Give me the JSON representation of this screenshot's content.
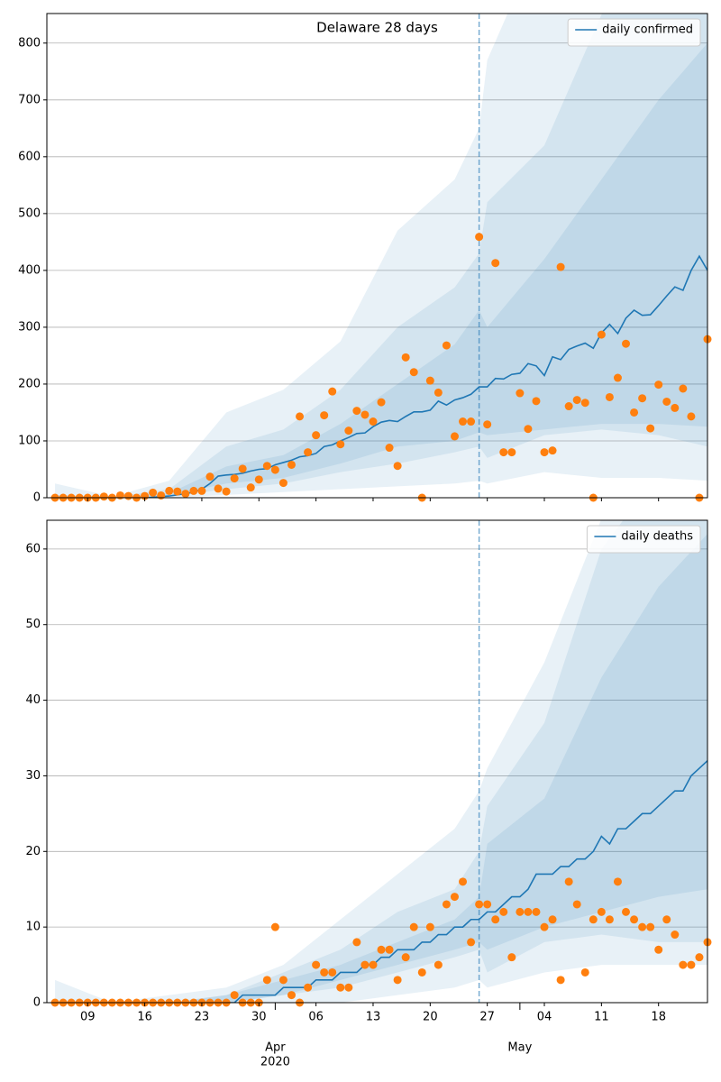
{
  "chart_data": [
    {
      "type": "line",
      "title": "Delaware 28 days",
      "legend": "upper right",
      "grid": true,
      "x": [
        "2020-03-05",
        "2020-03-06",
        "2020-03-07",
        "2020-03-08",
        "2020-03-09",
        "2020-03-10",
        "2020-03-11",
        "2020-03-12",
        "2020-03-13",
        "2020-03-14",
        "2020-03-15",
        "2020-03-16",
        "2020-03-17",
        "2020-03-18",
        "2020-03-19",
        "2020-03-20",
        "2020-03-21",
        "2020-03-22",
        "2020-03-23",
        "2020-03-24",
        "2020-03-25",
        "2020-03-26",
        "2020-03-27",
        "2020-03-28",
        "2020-03-29",
        "2020-03-30",
        "2020-03-31",
        "2020-04-01",
        "2020-04-02",
        "2020-04-03",
        "2020-04-04",
        "2020-04-05",
        "2020-04-06",
        "2020-04-07",
        "2020-04-08",
        "2020-04-09",
        "2020-04-10",
        "2020-04-11",
        "2020-04-12",
        "2020-04-13",
        "2020-04-14",
        "2020-04-15",
        "2020-04-16",
        "2020-04-17",
        "2020-04-18",
        "2020-04-19",
        "2020-04-20",
        "2020-04-21",
        "2020-04-22",
        "2020-04-23",
        "2020-04-24",
        "2020-04-25",
        "2020-04-26",
        "2020-04-27",
        "2020-04-28",
        "2020-04-29",
        "2020-04-30",
        "2020-05-01",
        "2020-05-02",
        "2020-05-03",
        "2020-05-04",
        "2020-05-05",
        "2020-05-06",
        "2020-05-07",
        "2020-05-08",
        "2020-05-09",
        "2020-05-10",
        "2020-05-11",
        "2020-05-12",
        "2020-05-13",
        "2020-05-14",
        "2020-05-15",
        "2020-05-16",
        "2020-05-17",
        "2020-05-18",
        "2020-05-19",
        "2020-05-20",
        "2020-05-21",
        "2020-05-22",
        "2020-05-23",
        "2020-05-24"
      ],
      "series": [
        {
          "name": "daily confirmed",
          "color": "#1f77b4",
          "values": [
            0,
            0,
            0,
            0,
            0,
            0,
            0,
            0,
            0,
            0,
            0,
            0,
            1,
            2,
            3,
            5,
            7,
            10,
            15,
            25,
            38,
            40,
            41,
            43,
            47,
            50,
            51,
            58,
            62,
            66,
            72,
            74,
            78,
            90,
            93,
            100,
            106,
            113,
            114,
            125,
            133,
            136,
            134,
            143,
            151,
            151,
            154,
            170,
            163,
            172,
            176,
            182,
            195,
            195,
            210,
            209,
            217,
            219,
            236,
            232,
            215,
            248,
            243,
            261,
            267,
            272,
            263,
            290,
            305,
            289,
            316,
            330,
            321,
            322,
            338,
            355,
            371,
            365,
            400,
            425,
            400
          ]
        }
      ],
      "points": {
        "color": "#ff7f0e",
        "values": [
          0,
          0,
          0,
          0,
          0,
          0,
          2,
          0,
          4,
          3,
          0,
          3,
          9,
          4,
          12,
          11,
          7,
          12,
          12,
          37,
          16,
          11,
          34,
          51,
          18,
          32,
          56,
          49,
          26,
          58,
          143,
          80,
          110,
          145,
          187,
          94,
          118,
          153,
          146,
          134,
          168,
          88,
          56,
          247,
          221,
          0,
          206,
          185,
          268,
          108,
          134,
          134,
          459,
          129,
          413,
          80,
          80,
          184,
          121,
          170,
          80,
          83,
          406,
          161,
          172,
          167,
          0,
          287,
          177,
          211,
          271,
          150,
          175,
          122,
          199,
          169,
          158,
          192,
          143,
          0,
          279
        ]
      },
      "bands": [
        {
          "color": "#1f77b4",
          "x": [
            "2020-03-05",
            "2020-03-12",
            "2020-03-19",
            "2020-03-26",
            "2020-04-02",
            "2020-04-09",
            "2020-04-16",
            "2020-04-23",
            "2020-04-26",
            "2020-04-27",
            "2020-05-04",
            "2020-05-11",
            "2020-05-18",
            "2020-05-24"
          ],
          "lower": [
            0,
            0,
            0,
            5,
            10,
            15,
            20,
            25,
            30,
            25,
            45,
            35,
            35,
            30
          ],
          "upper": [
            25,
            2,
            30,
            150,
            190,
            275,
            470,
            560,
            650,
            770,
            1000,
            1200,
            1400,
            1600
          ]
        },
        {
          "color": "#1f77b4",
          "x": [
            "2020-03-05",
            "2020-03-12",
            "2020-03-19",
            "2020-03-26",
            "2020-04-02",
            "2020-04-09",
            "2020-04-16",
            "2020-04-23",
            "2020-04-26",
            "2020-04-27",
            "2020-05-04",
            "2020-05-11",
            "2020-05-18",
            "2020-05-24"
          ],
          "lower": [
            0,
            0,
            2,
            15,
            25,
            45,
            60,
            80,
            90,
            70,
            110,
            120,
            110,
            90
          ],
          "upper": [
            5,
            1,
            15,
            90,
            120,
            190,
            300,
            370,
            430,
            520,
            620,
            850,
            1000,
            1100
          ]
        },
        {
          "color": "#1f77b4",
          "x": [
            "2020-03-05",
            "2020-03-12",
            "2020-03-19",
            "2020-03-26",
            "2020-04-02",
            "2020-04-09",
            "2020-04-16",
            "2020-04-23",
            "2020-04-26",
            "2020-04-27",
            "2020-05-04",
            "2020-05-11",
            "2020-05-18",
            "2020-05-24"
          ],
          "lower": [
            0,
            0,
            4,
            25,
            35,
            60,
            90,
            100,
            115,
            110,
            120,
            130,
            130,
            125
          ],
          "upper": [
            2,
            0,
            8,
            55,
            75,
            130,
            200,
            270,
            330,
            300,
            420,
            560,
            700,
            800
          ]
        }
      ],
      "vline": "2020-04-26",
      "xlim": [
        "2020-03-04",
        "2020-05-24"
      ],
      "ylim": [
        0,
        852
      ],
      "yticks": [
        0,
        100,
        200,
        300,
        400,
        500,
        600,
        700,
        800
      ]
    },
    {
      "type": "line",
      "legend": "upper right",
      "grid": true,
      "x": [
        "2020-03-05",
        "2020-03-06",
        "2020-03-07",
        "2020-03-08",
        "2020-03-09",
        "2020-03-10",
        "2020-03-11",
        "2020-03-12",
        "2020-03-13",
        "2020-03-14",
        "2020-03-15",
        "2020-03-16",
        "2020-03-17",
        "2020-03-18",
        "2020-03-19",
        "2020-03-20",
        "2020-03-21",
        "2020-03-22",
        "2020-03-23",
        "2020-03-24",
        "2020-03-25",
        "2020-03-26",
        "2020-03-27",
        "2020-03-28",
        "2020-03-29",
        "2020-03-30",
        "2020-03-31",
        "2020-04-01",
        "2020-04-02",
        "2020-04-03",
        "2020-04-04",
        "2020-04-05",
        "2020-04-06",
        "2020-04-07",
        "2020-04-08",
        "2020-04-09",
        "2020-04-10",
        "2020-04-11",
        "2020-04-12",
        "2020-04-13",
        "2020-04-14",
        "2020-04-15",
        "2020-04-16",
        "2020-04-17",
        "2020-04-18",
        "2020-04-19",
        "2020-04-20",
        "2020-04-21",
        "2020-04-22",
        "2020-04-23",
        "2020-04-24",
        "2020-04-25",
        "2020-04-26",
        "2020-04-27",
        "2020-04-28",
        "2020-04-29",
        "2020-04-30",
        "2020-05-01",
        "2020-05-02",
        "2020-05-03",
        "2020-05-04",
        "2020-05-05",
        "2020-05-06",
        "2020-05-07",
        "2020-05-08",
        "2020-05-09",
        "2020-05-10",
        "2020-05-11",
        "2020-05-12",
        "2020-05-13",
        "2020-05-14",
        "2020-05-15",
        "2020-05-16",
        "2020-05-17",
        "2020-05-18",
        "2020-05-19",
        "2020-05-20",
        "2020-05-21",
        "2020-05-22",
        "2020-05-23",
        "2020-05-24"
      ],
      "series": [
        {
          "name": "daily deaths",
          "color": "#1f77b4",
          "values": [
            0,
            0,
            0,
            0,
            0,
            0,
            0,
            0,
            0,
            0,
            0,
            0,
            0,
            0,
            0,
            0,
            0,
            0,
            0,
            0,
            0,
            0,
            0,
            1,
            1,
            1,
            1,
            1,
            2,
            2,
            2,
            2,
            3,
            3,
            3,
            4,
            4,
            4,
            5,
            5,
            6,
            6,
            7,
            7,
            7,
            8,
            8,
            9,
            9,
            10,
            10,
            11,
            11,
            12,
            12,
            13,
            14,
            14,
            15,
            17,
            17,
            17,
            18,
            18,
            19,
            19,
            20,
            22,
            21,
            23,
            23,
            24,
            25,
            25,
            26,
            27,
            28,
            28,
            30,
            31,
            32
          ]
        }
      ],
      "points": {
        "color": "#ff7f0e",
        "values": [
          0,
          0,
          0,
          0,
          0,
          0,
          0,
          0,
          0,
          0,
          0,
          0,
          0,
          0,
          0,
          0,
          0,
          0,
          0,
          0,
          0,
          0,
          1,
          0,
          0,
          0,
          3,
          10,
          3,
          1,
          0,
          2,
          5,
          4,
          4,
          2,
          2,
          8,
          5,
          5,
          7,
          7,
          3,
          6,
          10,
          4,
          10,
          5,
          13,
          14,
          16,
          8,
          13,
          13,
          11,
          12,
          6,
          12,
          12,
          12,
          10,
          11,
          3,
          16,
          13,
          4,
          11,
          12,
          11,
          16,
          12,
          11,
          10,
          10,
          7,
          11,
          9,
          5,
          5,
          6,
          8
        ]
      },
      "bands": [
        {
          "color": "#1f77b4",
          "x": [
            "2020-03-05",
            "2020-03-12",
            "2020-03-19",
            "2020-03-26",
            "2020-04-02",
            "2020-04-09",
            "2020-04-16",
            "2020-04-23",
            "2020-04-26",
            "2020-04-27",
            "2020-05-04",
            "2020-05-11",
            "2020-05-18",
            "2020-05-24"
          ],
          "lower": [
            0,
            0,
            0,
            0,
            0,
            0,
            1,
            2,
            3,
            2,
            4,
            5,
            5,
            5
          ],
          "upper": [
            3,
            0,
            1,
            2,
            5,
            11,
            17,
            23,
            28,
            31,
            45,
            64,
            70,
            75
          ]
        },
        {
          "color": "#1f77b4",
          "x": [
            "2020-03-05",
            "2020-03-12",
            "2020-03-19",
            "2020-03-26",
            "2020-04-02",
            "2020-04-09",
            "2020-04-16",
            "2020-04-23",
            "2020-04-26",
            "2020-04-27",
            "2020-05-04",
            "2020-05-11",
            "2020-05-18",
            "2020-05-24"
          ],
          "lower": [
            0,
            0,
            0,
            0,
            1,
            2,
            4,
            6,
            7,
            4,
            8,
            9,
            8,
            8
          ],
          "upper": [
            0,
            0,
            0,
            1,
            4,
            7,
            12,
            15,
            20,
            26,
            37,
            60,
            70,
            75
          ]
        },
        {
          "color": "#1f77b4",
          "x": [
            "2020-03-05",
            "2020-03-12",
            "2020-03-19",
            "2020-03-26",
            "2020-04-02",
            "2020-04-09",
            "2020-04-16",
            "2020-04-23",
            "2020-04-26",
            "2020-04-27",
            "2020-05-04",
            "2020-05-11",
            "2020-05-18",
            "2020-05-24"
          ],
          "lower": [
            0,
            0,
            0,
            0,
            1,
            3,
            5,
            7,
            8,
            7,
            10,
            12,
            14,
            15
          ],
          "upper": [
            0,
            0,
            0,
            1,
            3,
            5,
            8,
            11,
            14,
            21,
            27,
            43,
            55,
            62
          ]
        }
      ],
      "vline": "2020-04-26",
      "xlim": [
        "2020-03-04",
        "2020-05-24"
      ],
      "ylim": [
        0,
        63.8
      ],
      "yticks": [
        0,
        10,
        20,
        30,
        40,
        50,
        60
      ],
      "xticks": [
        {
          "value": "2020-03-09",
          "label": "09"
        },
        {
          "value": "2020-03-16",
          "label": "16"
        },
        {
          "value": "2020-03-23",
          "label": "23"
        },
        {
          "value": "2020-03-30",
          "label": "30"
        },
        {
          "value": "2020-04-06",
          "label": "06"
        },
        {
          "value": "2020-04-13",
          "label": "13"
        },
        {
          "value": "2020-04-20",
          "label": "20"
        },
        {
          "value": "2020-04-27",
          "label": "27"
        },
        {
          "value": "2020-05-04",
          "label": "04"
        },
        {
          "value": "2020-05-11",
          "label": "11"
        },
        {
          "value": "2020-05-18",
          "label": "18"
        }
      ],
      "month_ticks": [
        {
          "value": "2020-04-01",
          "label": "Apr",
          "sublabel": "2020"
        },
        {
          "value": "2020-05-01",
          "label": "May"
        }
      ]
    }
  ]
}
